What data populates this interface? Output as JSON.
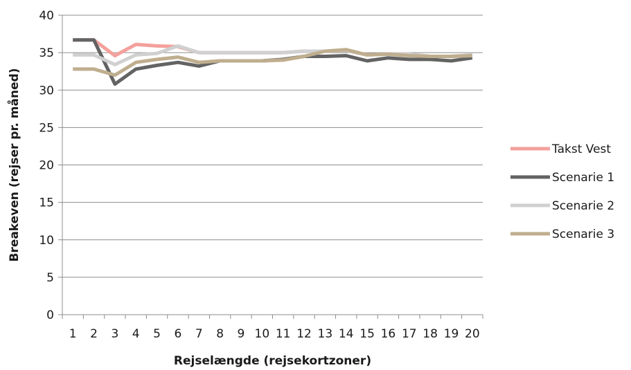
{
  "chart_data": {
    "type": "line",
    "title": "",
    "xlabel": "Rejselængde (rejsekortzoner)",
    "ylabel": "Breakeven (rejser pr. måned)",
    "categories": [
      "1",
      "2",
      "3",
      "4",
      "5",
      "6",
      "7",
      "8",
      "9",
      "10",
      "11",
      "12",
      "13",
      "14",
      "15",
      "16",
      "17",
      "18",
      "19",
      "20"
    ],
    "ylim": [
      0,
      40
    ],
    "yticks": [
      0,
      5,
      10,
      15,
      20,
      25,
      30,
      35,
      40
    ],
    "grid": "horizontal",
    "legend_position": "right",
    "series": [
      {
        "name": "Takst Vest",
        "color": "#f4a09c",
        "values": [
          36.7,
          36.7,
          34.6,
          36.1,
          35.9,
          35.8,
          35.0,
          35.0,
          35.0,
          35.0,
          35.0,
          35.2,
          35.2,
          35.3,
          34.7,
          34.8,
          34.8,
          34.5,
          34.5,
          34.7
        ]
      },
      {
        "name": "Scenarie 1",
        "color": "#636363",
        "values": [
          36.7,
          36.7,
          30.8,
          32.8,
          33.3,
          33.7,
          33.2,
          33.9,
          33.9,
          33.9,
          34.1,
          34.5,
          34.5,
          34.6,
          33.9,
          34.3,
          34.1,
          34.1,
          33.9,
          34.3
        ]
      },
      {
        "name": "Scenarie 2",
        "color": "#d0d0d0",
        "values": [
          34.7,
          34.7,
          33.4,
          34.7,
          34.9,
          35.9,
          35.0,
          35.0,
          35.0,
          35.0,
          35.0,
          35.2,
          35.2,
          35.3,
          34.7,
          34.8,
          34.8,
          34.5,
          34.5,
          34.7
        ]
      },
      {
        "name": "Scenarie 3",
        "color": "#bfae8e",
        "values": [
          32.8,
          32.8,
          32.0,
          33.7,
          34.1,
          34.4,
          33.7,
          33.9,
          33.9,
          33.9,
          34.0,
          34.5,
          35.2,
          35.4,
          34.7,
          34.8,
          34.6,
          34.5,
          34.5,
          34.6
        ]
      }
    ]
  }
}
